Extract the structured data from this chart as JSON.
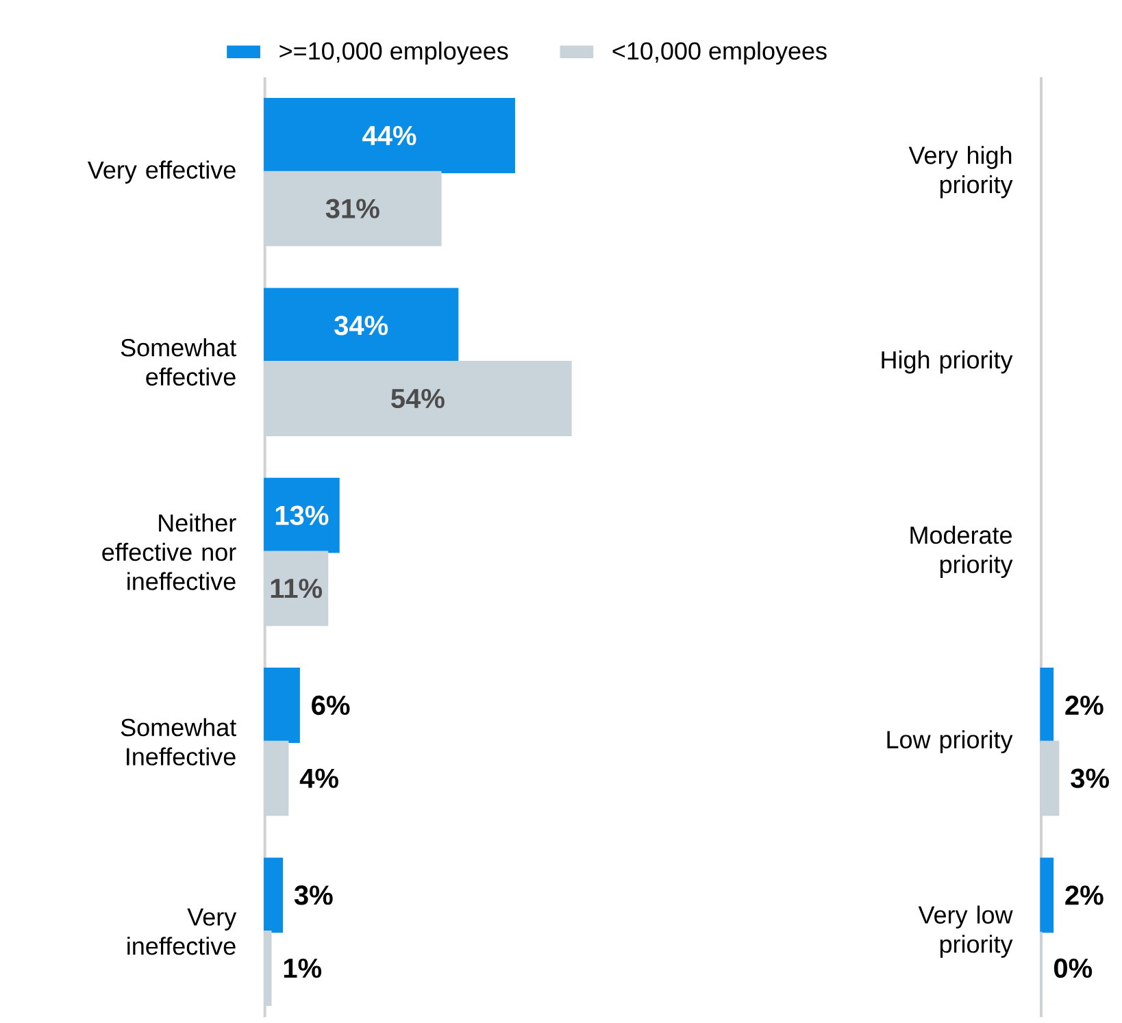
{
  "chart_data": [
    {
      "type": "bar",
      "orientation": "horizontal",
      "legend": "top",
      "categories": [
        "Very effective",
        "Somewhat effective",
        "Neither effective nor ineffective",
        "Somewhat Ineffective",
        "Very ineffective"
      ],
      "series": [
        {
          "name": ">=10,000 employees",
          "color": "#0a8de6",
          "values": [
            44,
            34,
            13,
            6,
            3
          ],
          "value_labels": [
            "44%",
            "34%",
            "13%",
            "6%",
            "3%"
          ]
        },
        {
          "name": "<10,000 employees",
          "color": "#c8d3da",
          "values": [
            31,
            54,
            11,
            4,
            1
          ],
          "value_labels": [
            "31%",
            "54%",
            "11%",
            "4%",
            "1%"
          ]
        }
      ]
    },
    {
      "type": "bar",
      "orientation": "horizontal",
      "categories": [
        "Very high priority",
        "High priority",
        "Moderate priority",
        "Low priority",
        "Very low priority"
      ],
      "series": [
        {
          "color": "#0a8de6",
          "values": [
            null,
            null,
            null,
            2,
            2
          ],
          "value_labels": [
            null,
            null,
            null,
            "2%",
            "2%"
          ]
        },
        {
          "color": "#c8d3da",
          "values": [
            null,
            null,
            null,
            3,
            0
          ],
          "value_labels": [
            null,
            null,
            null,
            "3%",
            "0%"
          ]
        }
      ]
    }
  ]
}
